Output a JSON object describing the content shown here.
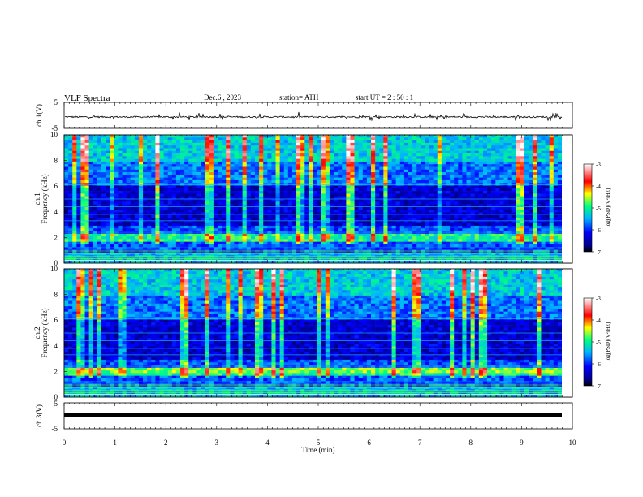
{
  "header": {
    "title": "VLF  Spectra",
    "date": "Dec.6   , 2023",
    "station": "station= ATH",
    "start": "start  UT  =   2  : 50 : 1"
  },
  "chart_data": [
    {
      "type": "line",
      "panel": "ch1-waveform",
      "ylabel": "ch.1(V)",
      "yticks": [
        "5",
        "-5"
      ],
      "ylim": [
        -5,
        5
      ],
      "xlim": [
        0,
        10
      ]
    },
    {
      "type": "heatmap",
      "panel": "ch1-spectrogram",
      "ylabel_line1": "ch.1",
      "ylabel_line2": "Frequency  (kHz)",
      "yticks": [
        "0",
        "2",
        "4",
        "6",
        "8",
        "10"
      ],
      "ylim": [
        0,
        10
      ],
      "xlim": [
        0,
        10
      ],
      "colorbar": {
        "label": "log(PSD)(V²/Hz)",
        "ticks": [
          "-3",
          "-4",
          "-5",
          "-6",
          "-7"
        ],
        "range": [
          -7,
          -3
        ]
      }
    },
    {
      "type": "heatmap",
      "panel": "ch2-spectrogram",
      "ylabel_line1": "ch.2",
      "ylabel_line2": "Frequency  (kHz)",
      "yticks": [
        "0",
        "2",
        "4",
        "6",
        "8",
        "10"
      ],
      "ylim": [
        0,
        10
      ],
      "xlim": [
        0,
        10
      ],
      "colorbar": {
        "label": "log(PSD)(V²/Hz)",
        "ticks": [
          "-3",
          "-4",
          "-5",
          "-6",
          "-7"
        ],
        "range": [
          -7,
          -3
        ]
      }
    },
    {
      "type": "line",
      "panel": "ch3-waveform",
      "ylabel": "ch.3(V)",
      "yticks": [
        "5",
        "-5"
      ],
      "ylim": [
        -5,
        5
      ],
      "xlim": [
        0,
        10
      ],
      "xlabel": "Time  (min)",
      "xticks": [
        "0",
        "1",
        "2",
        "3",
        "4",
        "5",
        "6",
        "7",
        "8",
        "9",
        "10"
      ]
    }
  ],
  "colors": {
    "spectrum_low": "#00007f",
    "spectrum_mid": "#00b4ff",
    "spectrum_high": "#ff0000",
    "axis": "#000000"
  }
}
